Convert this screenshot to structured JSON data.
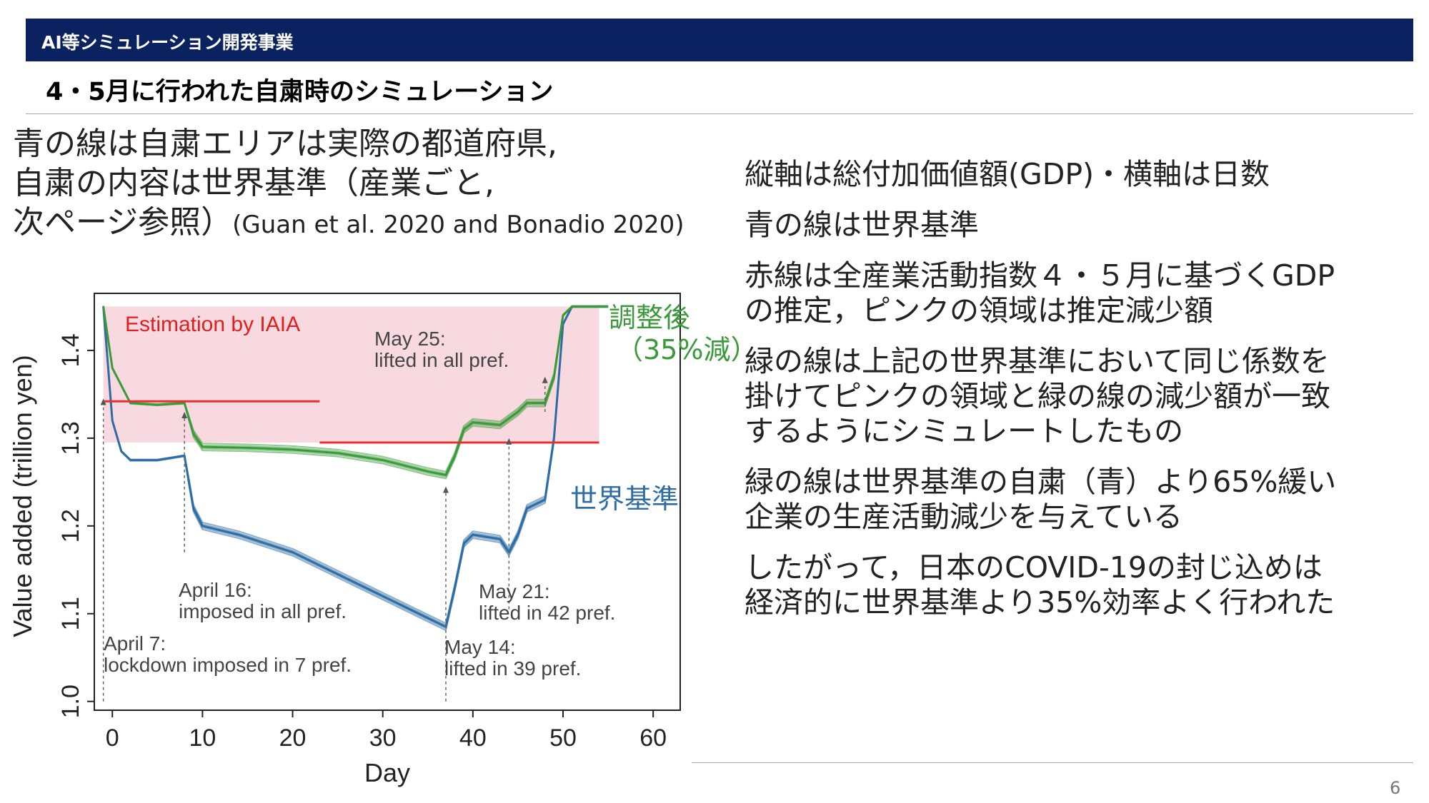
{
  "header": {
    "title": "AI等シミュレーション開発事業"
  },
  "slide": {
    "subtitle": "4・5月に行われた自粛時のシミュレーション",
    "intro_lines": [
      "青の線は自粛エリアは実際の都道府県,",
      "自粛の内容は世界基準（産業ごと,",
      "次ページ参照）"
    ],
    "intro_cite": "(Guan et al. 2020 and Bonadio 2020)",
    "notes": [
      [
        "縦軸は総付加価値額(GDP)・横軸は日数"
      ],
      [
        "青の線は世界基準"
      ],
      [
        "赤線は全産業活動指数４・５月に基づくGDP",
        "の推定，ピンクの領域は推定減少額"
      ],
      [
        "緑の線は上記の世界基準において同じ係数を",
        "掛けてピンクの領域と緑の線の減少額が一致",
        "するようにシミュレートしたもの"
      ],
      [
        "緑の線は世界基準の自粛（青）より65%緩い",
        "企業の生産活動減少を与えている"
      ],
      [
        "したがって，日本のCOVID-19の封じ込めは",
        "経済的に世界基準より35%効率よく行われた"
      ]
    ],
    "page_number": "6"
  },
  "chart_data": {
    "type": "line",
    "xlabel": "Day",
    "ylabel": "Value added (trillion yen)",
    "xlim": [
      -2,
      63
    ],
    "ylim": [
      0.99,
      1.465
    ],
    "xticks": [
      "0",
      "10",
      "20",
      "30",
      "40",
      "50",
      "60"
    ],
    "yticks": [
      "1.0",
      "1.1",
      "1.2",
      "1.3",
      "1.4"
    ],
    "series": [
      {
        "name": "世界基準",
        "color": "#2e6da4",
        "x": [
          -1,
          0,
          1,
          2,
          5,
          8,
          8.5,
          9,
          10,
          14,
          20,
          25,
          30,
          34,
          37,
          38,
          39,
          40,
          43,
          44,
          45,
          46,
          48,
          49,
          50,
          51,
          55
        ],
        "y": [
          1.45,
          1.32,
          1.285,
          1.275,
          1.275,
          1.28,
          1.25,
          1.22,
          1.2,
          1.19,
          1.17,
          1.145,
          1.12,
          1.1,
          1.085,
          1.13,
          1.18,
          1.19,
          1.185,
          1.17,
          1.19,
          1.22,
          1.23,
          1.3,
          1.43,
          1.45,
          1.45
        ]
      },
      {
        "name": "調整後（35%減）",
        "color": "#3a9a3a",
        "x": [
          -1,
          0,
          2,
          5,
          8,
          9,
          10,
          15,
          20,
          25,
          30,
          35,
          37,
          38,
          39,
          40,
          43,
          45,
          46,
          48,
          49,
          50,
          51,
          55
        ],
        "y": [
          1.45,
          1.38,
          1.34,
          1.338,
          1.34,
          1.305,
          1.29,
          1.289,
          1.287,
          1.283,
          1.275,
          1.262,
          1.258,
          1.28,
          1.31,
          1.318,
          1.315,
          1.33,
          1.34,
          1.34,
          1.37,
          1.44,
          1.45,
          1.45
        ]
      }
    ],
    "estimate_lines": [
      {
        "x": [
          -1,
          23
        ],
        "y": 1.342
      },
      {
        "x": [
          23,
          54
        ],
        "y": 1.295
      }
    ],
    "shaded_region": {
      "x": [
        -1,
        54
      ],
      "y_top": 1.45,
      "color": "#f8d9e0"
    },
    "annotations": {
      "estimation": "Estimation by IAIA",
      "may25": [
        "May 25:",
        "lifted in all pref."
      ],
      "apr16": [
        "April 16:",
        "imposed in all pref."
      ],
      "may21": [
        "May 21:",
        "lifted in 42 pref."
      ],
      "apr7": [
        "April 7:",
        "lockdown imposed in 7 pref."
      ],
      "may14": [
        "May 14:",
        "lifted in 39 pref."
      ]
    },
    "event_days": [
      -1,
      8,
      37,
      44,
      48
    ],
    "legend": {
      "green": [
        "調整後",
        "（35%減）"
      ],
      "blue": "世界基準"
    }
  }
}
